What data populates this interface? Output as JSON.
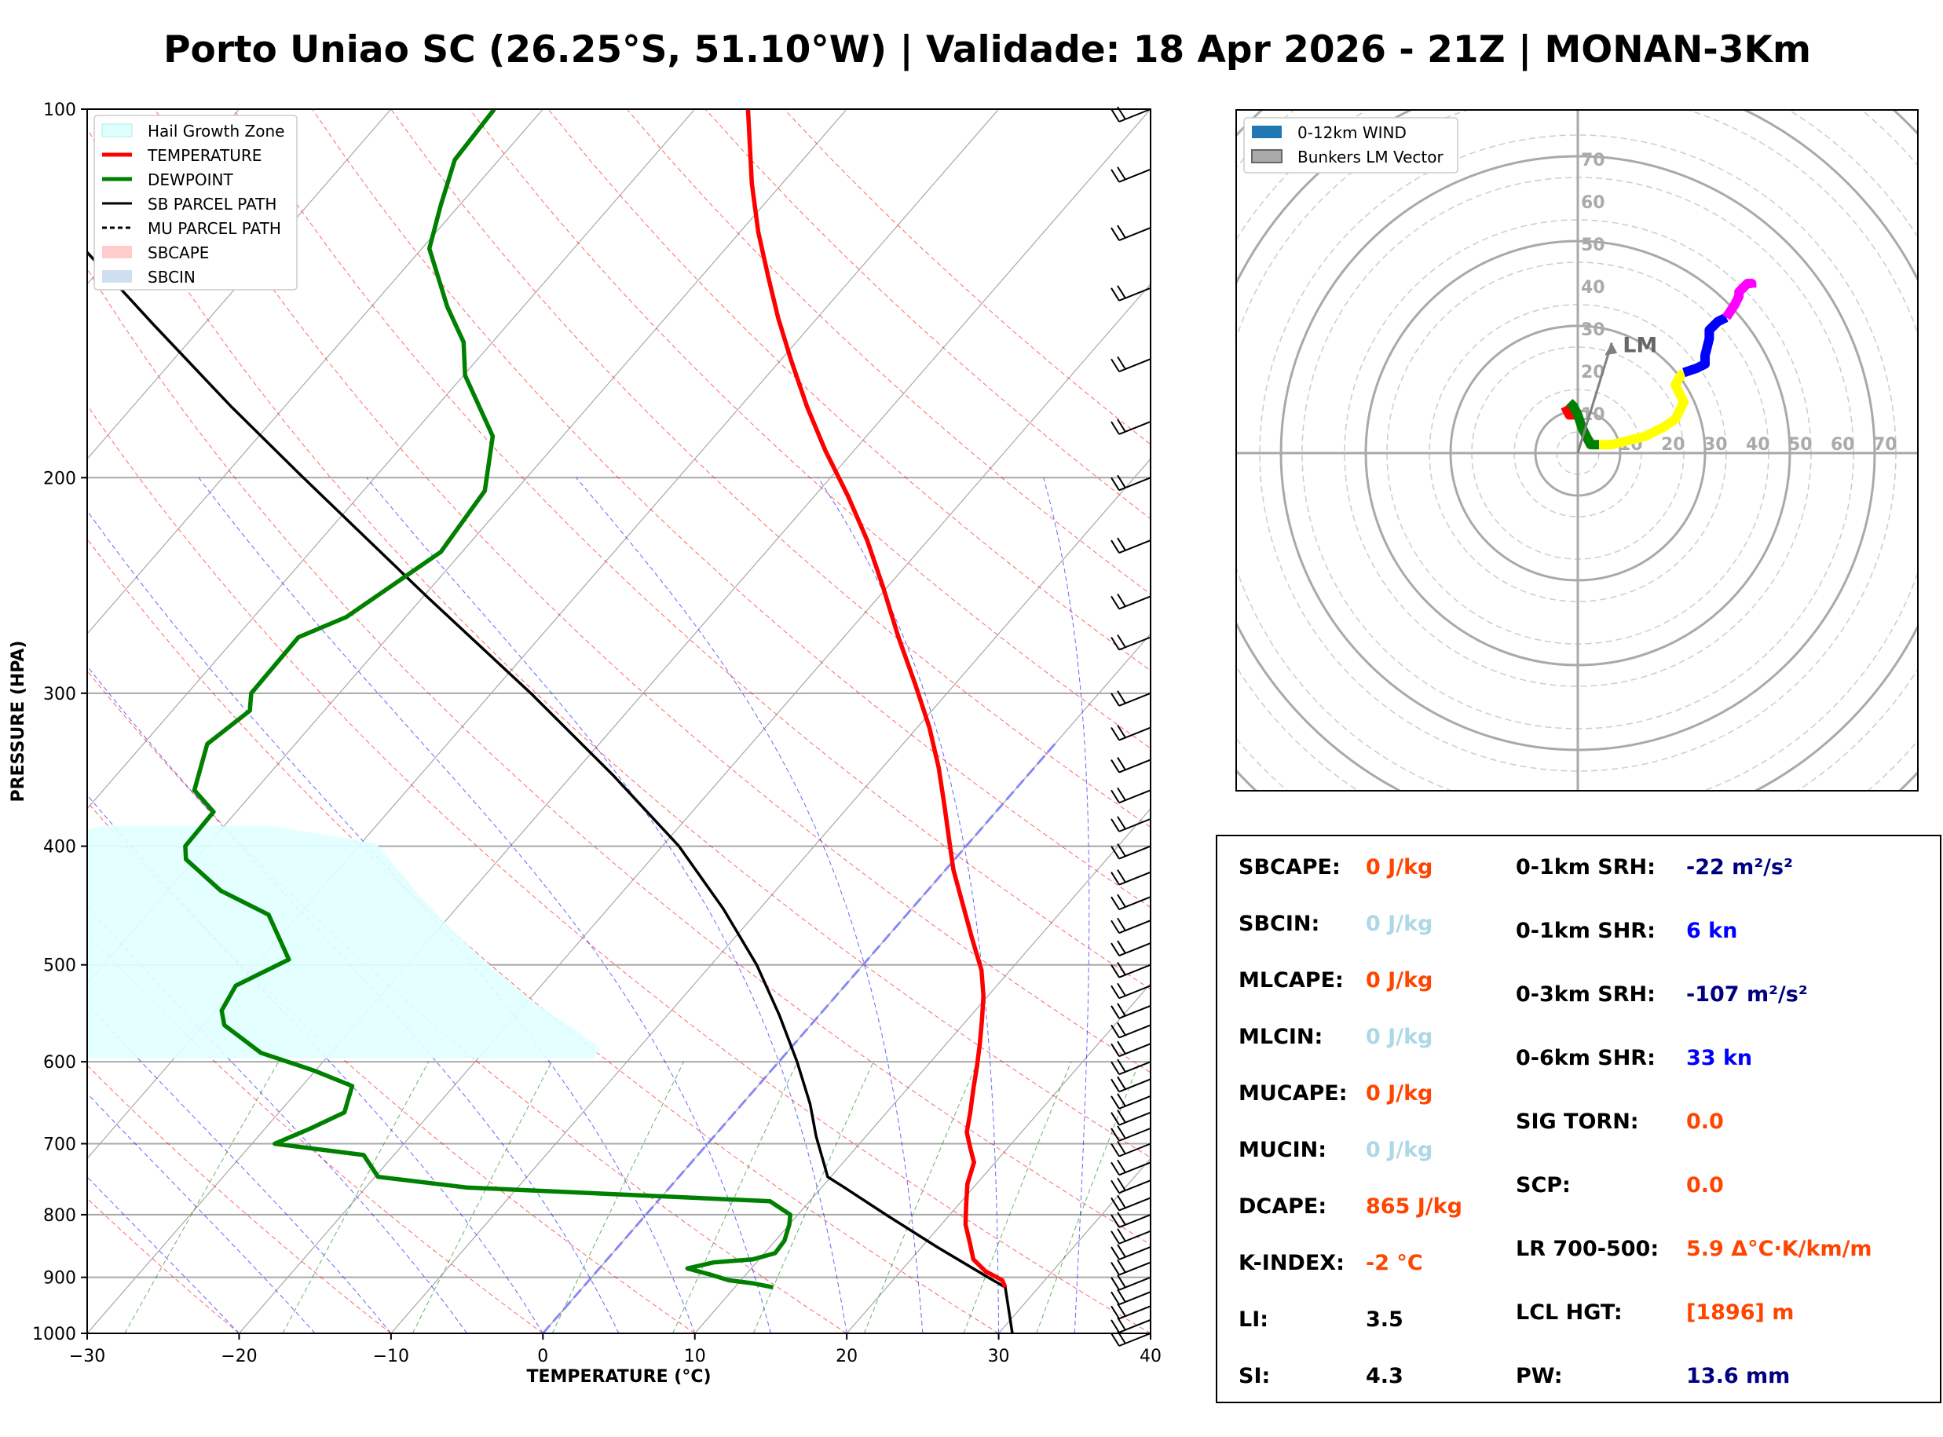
{
  "title": "Porto Uniao SC (26.25°S, 51.10°W) | Validade: 18 Apr 2026 - 21Z | MONAN-3Km",
  "colors": {
    "temperature": "#ff0000",
    "dewpoint": "#008000",
    "parcel": "#000000",
    "hail": "#e0ffff",
    "hodo_red": "#ff0000",
    "hodo_green": "#008000",
    "hodo_yellow": "#ffff00",
    "hodo_blue": "#0000ff",
    "hodo_magenta": "#ff00ff",
    "value_orange": "#ff4500",
    "value_lightblue": "#add8e6",
    "value_navy": "#000080",
    "value_blue": "#0000ff",
    "value_black": "#000000"
  },
  "chart_data": [
    {
      "type": "skewt",
      "xlabel": "TEMPERATURE (°C)",
      "ylabel": "PRESSURE (HPA)",
      "xlim": [
        -30,
        40
      ],
      "ylim": [
        1000,
        100
      ],
      "x_ticks": [
        -30,
        -20,
        -10,
        0,
        10,
        20,
        30,
        40
      ],
      "x_tick_labels": [
        "−30",
        "−20",
        "−10",
        "0",
        "10",
        "20",
        "30",
        "40"
      ],
      "p_ticks": [
        100,
        200,
        300,
        400,
        500,
        600,
        700,
        800,
        900,
        1000
      ],
      "p_tick_labels": [
        "100",
        "200",
        "300",
        "400",
        "500",
        "600",
        "700",
        "800",
        "900",
        "1000"
      ],
      "legend": {
        "placement": "top-left",
        "entries": [
          {
            "label": "Hail Growth Zone",
            "style": "patch-hail"
          },
          {
            "label": "TEMPERATURE",
            "style": "line-red"
          },
          {
            "label": "DEWPOINT",
            "style": "line-green"
          },
          {
            "label": "SB PARCEL PATH",
            "style": "line-black"
          },
          {
            "label": "MU PARCEL PATH",
            "style": "line-dashed"
          },
          {
            "label": "SBCAPE",
            "style": "patch-pink"
          },
          {
            "label": "SBCIN",
            "style": "patch-blue"
          }
        ]
      },
      "temperature": {
        "p": [
          917,
          905,
          890,
          870,
          845,
          815,
          785,
          755,
          725,
          705,
          685,
          660,
          630,
          605,
          580,
          555,
          530,
          505,
          475,
          445,
          418,
          395,
          370,
          345,
          320,
          295,
          270,
          245,
          225,
          207,
          190,
          175,
          160,
          148,
          137,
          126,
          115,
          100
        ],
        "t": [
          27.8,
          27.2,
          25.6,
          24.1,
          23.0,
          21.6,
          20.5,
          19.4,
          18.6,
          17.5,
          16.4,
          15.5,
          14.3,
          13.3,
          12.2,
          11.0,
          9.7,
          8.1,
          5.6,
          3.0,
          0.5,
          -1.5,
          -3.8,
          -6.3,
          -9.2,
          -12.6,
          -16.4,
          -20.4,
          -24.0,
          -27.8,
          -31.9,
          -35.6,
          -39.4,
          -42.6,
          -45.6,
          -48.8,
          -52.0,
          -56.5
        ]
      },
      "dewpoint": {
        "p": [
          917,
          910,
          905,
          895,
          885,
          875,
          870,
          860,
          840,
          815,
          800,
          780,
          760,
          745,
          715,
          700,
          680,
          660,
          628,
          610,
          590,
          560,
          545,
          520,
          495,
          455,
          435,
          410,
          400,
          375,
          360,
          330,
          310,
          300,
          270,
          260,
          230,
          205,
          185,
          165,
          155,
          145,
          130,
          120,
          110,
          100
        ],
        "t": [
          12.5,
          10.9,
          9.2,
          7.6,
          5.8,
          7.2,
          9.6,
          10.7,
          10.6,
          10.0,
          9.5,
          7.4,
          -13.4,
          -19.8,
          -22.0,
          -28.5,
          -27.0,
          -25.7,
          -26.7,
          -30.1,
          -34.6,
          -38.6,
          -39.6,
          -40.1,
          -38.1,
          -42.0,
          -46.5,
          -50.6,
          -51.4,
          -51.5,
          -54.0,
          -55.8,
          -54.9,
          -55.8,
          -55.9,
          -53.9,
          -51.4,
          -52.0,
          -54.6,
          -59.9,
          -61.9,
          -65.0,
          -69.5,
          -71.2,
          -72.9,
          -73.2
        ]
      },
      "sb_parcel": {
        "p": [
          1000,
          917,
          900,
          850,
          800,
          760,
          745,
          725,
          690,
          650,
          600,
          550,
          500,
          450,
          400,
          350,
          300,
          250,
          200,
          175,
          150,
          125,
          100
        ],
        "t": [
          30.9,
          27.8,
          26.1,
          21.0,
          15.8,
          11.5,
          9.8,
          8.7,
          6.7,
          4.5,
          1.2,
          -2.6,
          -7.0,
          -12.4,
          -18.9,
          -27.3,
          -37.4,
          -49.8,
          -64.7,
          -73.5,
          -83.3,
          -94.7,
          -108.2
        ]
      },
      "hail_growth_zone": {
        "p_range": [
          385,
          596
        ],
        "t_range": [
          -30,
          -10
        ]
      },
      "wind_barb_levels_hpa": [
        100,
        112,
        125,
        140,
        160,
        180,
        200,
        225,
        250,
        270,
        300,
        320,
        340,
        360,
        380,
        400,
        420,
        440,
        460,
        480,
        500,
        520,
        540,
        560,
        580,
        600,
        620,
        640,
        660,
        680,
        700,
        725,
        750,
        775,
        800,
        825,
        850,
        875,
        900,
        925,
        950,
        975,
        1000
      ]
    },
    {
      "type": "hodograph",
      "legend": {
        "placement": "top-left",
        "entries": [
          {
            "label": "0-12km WIND",
            "style": "patch-steelblue"
          },
          {
            "label": "Bunkers LM Vector",
            "style": "patch-gray"
          }
        ]
      },
      "ring_labels": [
        "10",
        "20",
        "30",
        "40",
        "50",
        "60",
        "70"
      ],
      "max_speed": 80,
      "bunkers_lm": {
        "u": 8,
        "v": 26,
        "label": "LM"
      },
      "segments": [
        {
          "color": "red",
          "u": [
            -3,
            -2,
            0
          ],
          "v": [
            11,
            9,
            9
          ]
        },
        {
          "color": "green",
          "u": [
            -2,
            -1,
            0,
            1,
            2,
            3,
            5
          ],
          "v": [
            12,
            11,
            9,
            6,
            4,
            2,
            2
          ]
        },
        {
          "color": "yellow",
          "u": [
            5,
            8,
            12,
            16,
            20,
            23,
            24,
            25,
            24,
            23,
            24,
            25
          ],
          "v": [
            2,
            2,
            3,
            4,
            6,
            8,
            10,
            12,
            14,
            16,
            18,
            19
          ]
        },
        {
          "color": "blue",
          "u": [
            25,
            28,
            30,
            30,
            31,
            31,
            33,
            35
          ],
          "v": [
            19,
            20,
            21,
            23,
            27,
            29,
            31,
            32
          ]
        },
        {
          "color": "magenta",
          "u": [
            35,
            37,
            38,
            38,
            39,
            40,
            41,
            41
          ],
          "v": [
            32,
            35,
            37,
            38,
            39,
            40,
            40,
            39
          ]
        }
      ]
    }
  ],
  "indices": {
    "left": [
      {
        "label": "SBCAPE:",
        "value": "0 J/kg",
        "color": "#ff4500"
      },
      {
        "label": "SBCIN:",
        "value": "0 J/kg",
        "color": "#add8e6"
      },
      {
        "label": "MLCAPE:",
        "value": "0 J/kg",
        "color": "#ff4500"
      },
      {
        "label": "MLCIN:",
        "value": "0 J/kg",
        "color": "#add8e6"
      },
      {
        "label": "MUCAPE:",
        "value": "0 J/kg",
        "color": "#ff4500"
      },
      {
        "label": "MUCIN:",
        "value": "0 J/kg",
        "color": "#add8e6"
      },
      {
        "label": "DCAPE:",
        "value": "865 J/kg",
        "color": "#ff4500"
      },
      {
        "label": "K-INDEX:",
        "value": "-2 °C",
        "color": "#ff4500"
      },
      {
        "label": "LI:",
        "value": "3.5",
        "color": "#000000"
      },
      {
        "label": "SI:",
        "value": "4.3",
        "color": "#000000"
      }
    ],
    "right": [
      {
        "label": "0-1km SRH:",
        "value": "-22 m²/s²",
        "color": "#000080"
      },
      {
        "label": "0-1km SHR:",
        "value": "6 kn",
        "color": "#0000ff"
      },
      {
        "label": "0-3km SRH:",
        "value": "-107 m²/s²",
        "color": "#000080"
      },
      {
        "label": "0-6km SHR:",
        "value": "33 kn",
        "color": "#0000ff"
      },
      {
        "label": "SIG TORN:",
        "value": "0.0",
        "color": "#ff4500"
      },
      {
        "label": "SCP:",
        "value": "0.0",
        "color": "#ff4500"
      },
      {
        "label": "LR 700-500:",
        "value": "5.9 Δ°C·K/km/m",
        "color": "#ff4500"
      },
      {
        "label": "LCL HGT:",
        "value": "[1896] m",
        "color": "#ff4500"
      },
      {
        "label": "PW:",
        "value": "13.6 mm",
        "color": "#000080"
      }
    ]
  }
}
